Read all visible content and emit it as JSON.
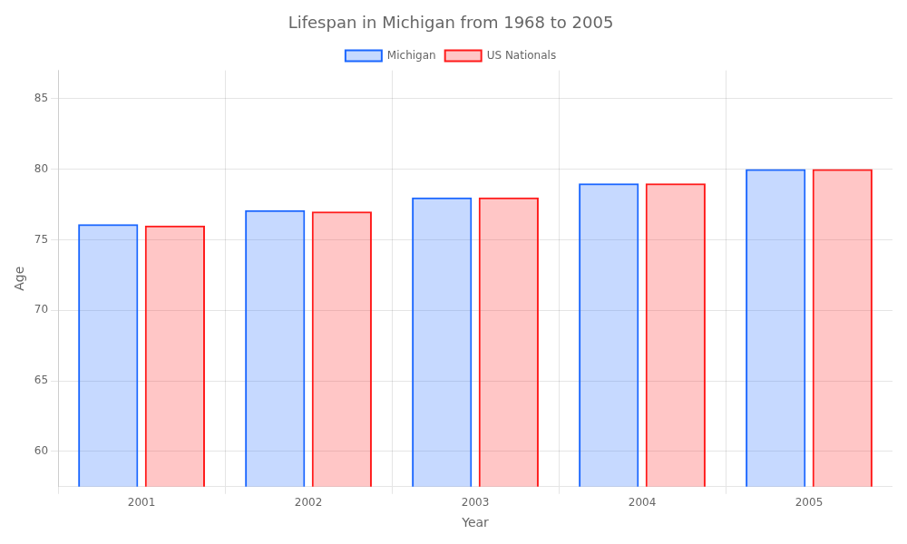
{
  "chart_data": {
    "type": "bar",
    "title": "Lifespan in Michigan from 1968 to 2005",
    "xlabel": "Year",
    "ylabel": "Age",
    "categories": [
      "2001",
      "2002",
      "2003",
      "2004",
      "2005"
    ],
    "series": [
      {
        "name": "Michigan",
        "color": "#1a66ff",
        "values": [
          76.1,
          77.1,
          78.0,
          79.0,
          80.0
        ]
      },
      {
        "name": "US Nationals",
        "color": "#ff1a1a",
        "values": [
          76.0,
          77.0,
          78.0,
          79.0,
          80.0
        ]
      }
    ],
    "ylim": [
      57.5,
      87
    ],
    "yticks": [
      60,
      65,
      70,
      75,
      80,
      85
    ],
    "grid": true,
    "legend": "top"
  }
}
